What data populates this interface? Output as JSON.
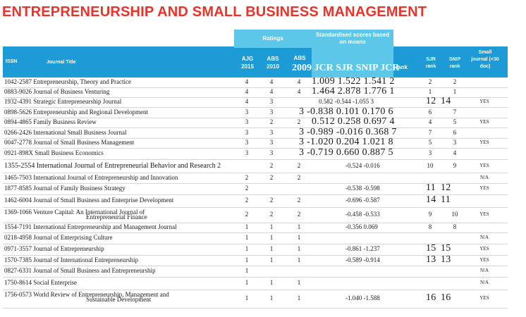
{
  "title": "ENTREPRENEURSHIP AND SMALL BUSINESS MANAGEMENT",
  "header": {
    "issn": "ISSN",
    "journal_title": "Journal Title",
    "ratings": "Ratings",
    "standardised": "Standardised scores based on means",
    "ajg_2015": "AJG 2015",
    "abs_2010": "ABS 2010",
    "abs_2009": "ABS",
    "overflow_2009": "2009 JCR SJR SNIP JCR",
    "overflow_rank": "rank",
    "sjr_rank": "SJR rank",
    "snip_rank": "SNIP rank",
    "small_journal": "Small journal (<30 doc)"
  },
  "rows": [
    {
      "issn_title": "1042-2587 Entrepreneurship, Theory and Practice",
      "title2": "",
      "ajg": "4",
      "abs10": "4",
      "abs09": "4",
      "scores": "1.009 1.522 1.541 2",
      "scores_big": true,
      "sjr_rank": "2",
      "snip_rank": "2",
      "ranks_big": false,
      "small": ""
    },
    {
      "issn_title": "0883-9026 Journal of Business Venturing",
      "title2": "",
      "ajg": "4",
      "abs10": "4",
      "abs09": "4",
      "scores": "1.464 2.878 1.776 1",
      "scores_big": true,
      "sjr_rank": "1",
      "snip_rank": "1",
      "ranks_big": false,
      "small": ""
    },
    {
      "issn_title": "1932-4391 Strategic Entrepreneurship Journal",
      "title2": "",
      "ajg": "4",
      "abs10": "3",
      "abs09": "",
      "scores": "0.582 -0.544 -1.055 3",
      "scores_big": false,
      "sjr_rank": "12",
      "snip_rank": "14",
      "ranks_big": true,
      "small": "YES"
    },
    {
      "issn_title": "0898-5626 Entrepreneurship and Regional Development",
      "title2": "",
      "ajg": "3",
      "abs10": "3",
      "abs09": "",
      "scores": "3 -0.838 0.101 0.170 6",
      "scores_big": true,
      "sjr_rank": "6",
      "snip_rank": "7",
      "ranks_big": false,
      "small": ""
    },
    {
      "issn_title": "0894-4865 Family Business Review",
      "title2": "",
      "ajg": "3",
      "abs10": "2",
      "abs09": "2",
      "scores": "0.512 0.258 0.697 4",
      "scores_big": true,
      "sjr_rank": "4",
      "snip_rank": "5",
      "ranks_big": false,
      "small": "YES"
    },
    {
      "issn_title": "0266-2426 International Small Business Journal",
      "title2": "",
      "ajg": "3",
      "abs10": "3",
      "abs09": "",
      "scores": "3 -0.989 -0.016 0.368 7",
      "scores_big": true,
      "sjr_rank": "7",
      "snip_rank": "6",
      "ranks_big": false,
      "small": ""
    },
    {
      "issn_title": "0047-2778 Journal of Small Business Management",
      "title2": "",
      "ajg": "3",
      "abs10": "3",
      "abs09": "",
      "scores": "3 -1.020 0.204 1.021 8",
      "scores_big": true,
      "sjr_rank": "5",
      "snip_rank": "3",
      "ranks_big": false,
      "small": "YES"
    },
    {
      "issn_title": "0921-898X Small Business Economics",
      "title2": "",
      "ajg": "3",
      "abs10": "3",
      "abs09": "",
      "scores": "3 -0.719 0.660 0.887 5",
      "scores_big": true,
      "sjr_rank": "3",
      "snip_rank": "4",
      "ranks_big": false,
      "small": ""
    },
    {
      "issn_title": "1355-2554 International Journal of Entrepreneurial Behavior and Research 2",
      "title2": "",
      "ajg": "",
      "abs10": "2",
      "abs09": "2",
      "scores": "-0.524 -0.016",
      "scores_big": false,
      "sjr_rank": "10",
      "snip_rank": "9",
      "ranks_big": false,
      "small": "YES",
      "issn_big": true
    },
    {
      "issn_title": "1465-7503 International Journal of Entrepreneurship and Innovation",
      "title2": "",
      "ajg": "2",
      "abs10": "2",
      "abs09": "2",
      "scores": "",
      "scores_big": false,
      "sjr_rank": "",
      "snip_rank": "",
      "ranks_big": false,
      "small": "N/A"
    },
    {
      "issn_title": "1877-8585 Journal of Family Business Strategy",
      "title2": "",
      "ajg": "2",
      "abs10": "",
      "abs09": "",
      "scores": "-0.538 -0.598",
      "scores_big": false,
      "sjr_rank": "11",
      "snip_rank": "12",
      "ranks_big": true,
      "small": "YES"
    },
    {
      "issn_title": "1462-6004 Journal of Small Business and Enterprise Development",
      "title2": "",
      "ajg": "2",
      "abs10": "2",
      "abs09": "2",
      "scores": "-0.696 -0.587",
      "scores_big": false,
      "sjr_rank": "14",
      "snip_rank": "11",
      "ranks_big": true,
      "small": ""
    },
    {
      "issn_title": "1369-1066 Venture Capital: An International Journal of",
      "title2": "Entrepreneurial Finance",
      "ajg": "2",
      "abs10": "2",
      "abs09": "2",
      "scores": "-0.458 -0.533",
      "scores_big": false,
      "sjr_rank": "9",
      "snip_rank": "10",
      "ranks_big": false,
      "small": "YES"
    },
    {
      "issn_title": "1554-7191 International Entrepreneurship and Management Journal",
      "title2": "",
      "ajg": "1",
      "abs10": "1",
      "abs09": "1",
      "scores": "-0.356 0.069",
      "scores_big": false,
      "sjr_rank": "8",
      "snip_rank": "8",
      "ranks_big": false,
      "small": ""
    },
    {
      "issn_title": "0218-4958 Journal of Enterprising Culture",
      "title2": "",
      "ajg": "1",
      "abs10": "1",
      "abs09": "1",
      "scores": "",
      "scores_big": false,
      "sjr_rank": "",
      "snip_rank": "",
      "ranks_big": false,
      "small": "N/A"
    },
    {
      "issn_title": "0971-3557 Journal of Entrepreneurship",
      "title2": "",
      "ajg": "1",
      "abs10": "1",
      "abs09": "1",
      "scores": "-0.861 -1.237",
      "scores_big": false,
      "sjr_rank": "15",
      "snip_rank": "15",
      "ranks_big": true,
      "small": "YES"
    },
    {
      "issn_title": "1570-7385 Journal of International Entrepreneurship",
      "title2": "",
      "ajg": "1",
      "abs10": "1",
      "abs09": "1",
      "scores": "-0.589 -0.914",
      "scores_big": false,
      "sjr_rank": "13",
      "snip_rank": "13",
      "ranks_big": true,
      "small": "YES"
    },
    {
      "issn_title": "0827-6331 Journal of Small Business and Entrepreneurship",
      "title2": "",
      "ajg": "1",
      "abs10": "",
      "abs09": "",
      "scores": "",
      "scores_big": false,
      "sjr_rank": "",
      "snip_rank": "",
      "ranks_big": false,
      "small": "N/A"
    },
    {
      "issn_title": "1750-8614 Social Enterprise",
      "title2": "",
      "ajg": "1",
      "abs10": "1",
      "abs09": "1",
      "scores": "",
      "scores_big": false,
      "sjr_rank": "",
      "snip_rank": "",
      "ranks_big": false,
      "small": "N/A"
    },
    {
      "issn_title": "1756-0573 World Review of Entrepreneurship, Management and",
      "title2": "Sustainable Development",
      "ajg": "1",
      "abs10": "1",
      "abs09": "1",
      "scores": "-1.040 -1.588",
      "scores_big": false,
      "sjr_rank": "16",
      "snip_rank": "16",
      "ranks_big": true,
      "small": "YES"
    }
  ]
}
